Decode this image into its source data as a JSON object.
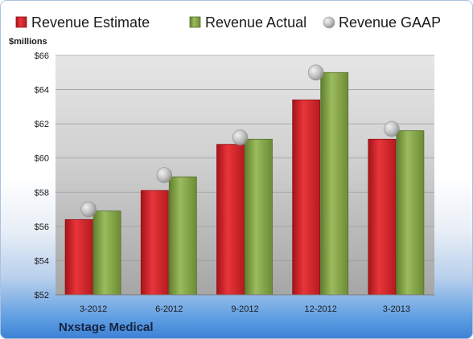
{
  "chart_data": {
    "type": "bar",
    "company": "Nxstage Medical",
    "ylabel": "$millions",
    "ylim": [
      52,
      66
    ],
    "yticks": [
      "$52",
      "$54",
      "$56",
      "$58",
      "$60",
      "$62",
      "$64",
      "$66"
    ],
    "ytick_values": [
      52,
      54,
      56,
      58,
      60,
      62,
      64,
      66
    ],
    "categories": [
      "3-2012",
      "6-2012",
      "9-2012",
      "12-2012",
      "3-2013"
    ],
    "series": [
      {
        "name": "Revenue Estimate",
        "kind": "bar",
        "color": "#d42a2f",
        "values": [
          56.4,
          58.1,
          60.8,
          63.4,
          61.1
        ]
      },
      {
        "name": "Revenue Actual",
        "kind": "bar",
        "color": "#86a54a",
        "values": [
          56.9,
          58.9,
          61.1,
          65.0,
          61.6
        ]
      },
      {
        "name": "Revenue GAAP",
        "kind": "point",
        "color": "#b9b9b9",
        "values": [
          57.0,
          59.0,
          61.2,
          65.0,
          61.7
        ]
      }
    ],
    "legend_position": "top",
    "grid": true
  }
}
